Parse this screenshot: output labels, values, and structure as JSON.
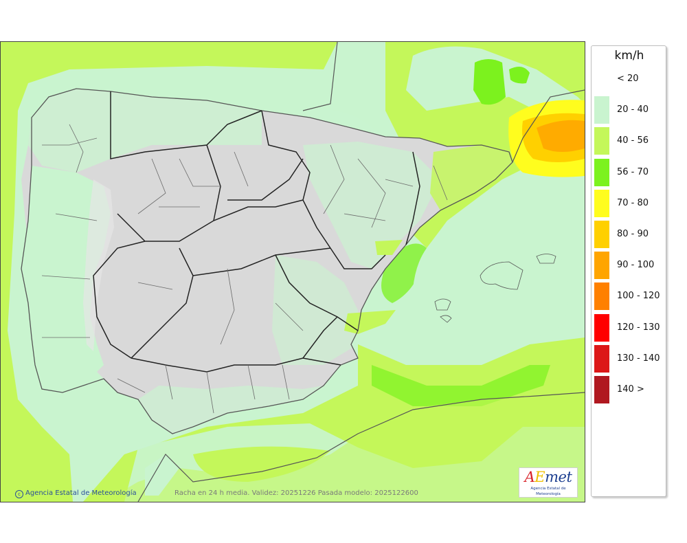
{
  "legend": {
    "unit": "km/h",
    "items": [
      {
        "label": "< 20",
        "color": "#ffffff"
      },
      {
        "label": "20 - 40",
        "color": "#c9f4cf"
      },
      {
        "label": "40 - 56",
        "color": "#c4f75a"
      },
      {
        "label": "56 - 70",
        "color": "#7cf21e"
      },
      {
        "label": "70 - 80",
        "color": "#fffd1e"
      },
      {
        "label": "80 - 90",
        "color": "#ffd000"
      },
      {
        "label": "90 - 100",
        "color": "#ffa500"
      },
      {
        "label": "100 - 120",
        "color": "#ff8000"
      },
      {
        "label": "120 - 130",
        "color": "#ff0000"
      },
      {
        "label": "130 - 140",
        "color": "#dc1717"
      },
      {
        "label": "140 >",
        "color": "#b01820"
      }
    ]
  },
  "footer": {
    "credit": "Agencia Estatal de Meteorología",
    "caption": "Racha en 24 h media. Validez: 20251226 Pasada modelo: 2025122600"
  },
  "logo": {
    "word": "AEmet",
    "subtitle": "Agencia Estatal de Meteorología"
  },
  "colors": {
    "land_relief": "#d9d9d9",
    "band_20_40": "#c9f4cf",
    "band_40_56": "#c4f75a",
    "band_56_70": "#7cf21e",
    "band_70_80": "#fffd1e",
    "band_90_100": "#ffa500",
    "borders": "#222222",
    "provinces": "#6a6a6a"
  }
}
